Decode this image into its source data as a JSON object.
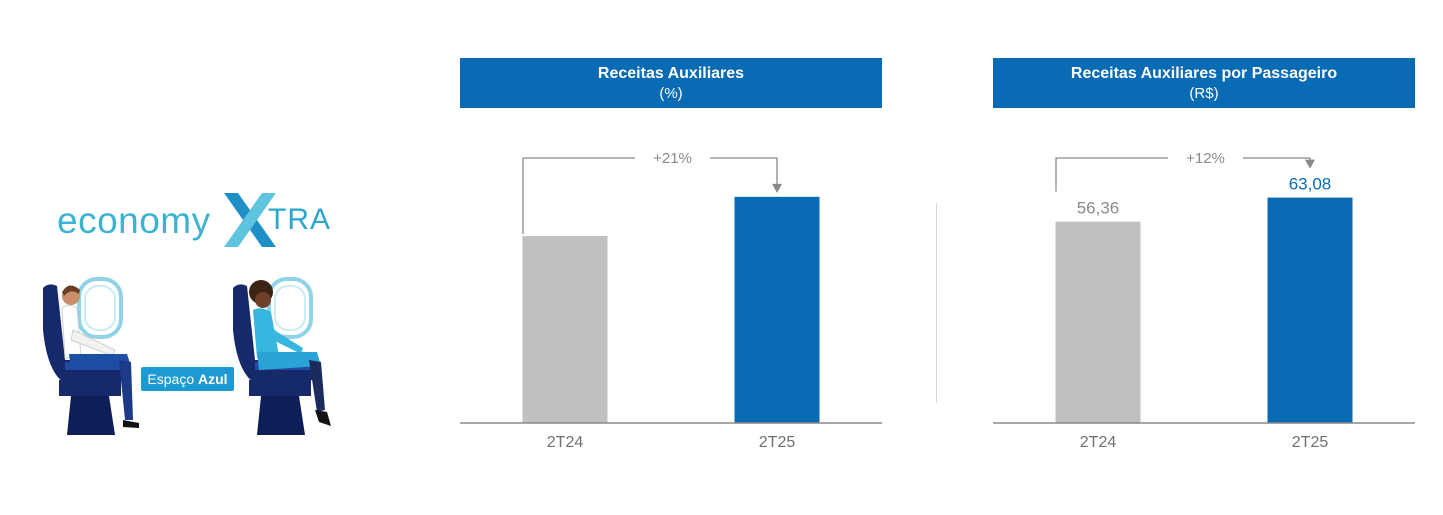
{
  "logo": {
    "word": "economy",
    "x": "X",
    "suffix": "TRA"
  },
  "badge": {
    "regular": "Espaço ",
    "bold": "Azul"
  },
  "colors": {
    "bar_current": "#0a6bb5",
    "bar_previous": "#c0c0c0",
    "header_bg": "#0a6bb5",
    "arrow": "#8a8a8a",
    "label_current": "#0a6bb5",
    "label_previous": "#8a8a8a"
  },
  "chart_data": [
    {
      "type": "bar",
      "title": "Receitas Auxiliares",
      "subtitle": "(%)",
      "categories": [
        "2T24",
        "2T25"
      ],
      "values": [
        1.0,
        1.21
      ],
      "value_labels": [
        "",
        ""
      ],
      "change_label": "+21%",
      "ylim": [
        0,
        1.3
      ]
    },
    {
      "type": "bar",
      "title": "Receitas Auxiliares por Passageiro",
      "subtitle": "(R$)",
      "categories": [
        "2T24",
        "2T25"
      ],
      "values": [
        56.36,
        63.08
      ],
      "value_labels": [
        "56,36",
        "63,08"
      ],
      "change_label": "+12%",
      "ylim": [
        0,
        68
      ]
    }
  ]
}
